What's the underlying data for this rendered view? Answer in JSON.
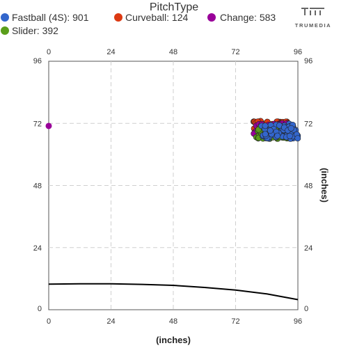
{
  "logo": {
    "text": "TRUMEDIA"
  },
  "chart_data": {
    "type": "scatter",
    "title": "PitchType",
    "xlabel": "(inches)",
    "ylabel": "(inches)",
    "xlim": [
      0,
      96
    ],
    "ylim": [
      0,
      96
    ],
    "xticks": [
      0,
      24,
      48,
      72,
      96
    ],
    "yticks": [
      0,
      24,
      48,
      72,
      96
    ],
    "grid": true,
    "legend_position": "top",
    "series": [
      {
        "name": "Fastball (4S)",
        "count": 901,
        "legend": "Fastball (4S): 901",
        "color": "#3366cc"
      },
      {
        "name": "Curveball",
        "count": 124,
        "legend": "Curveball: 124",
        "color": "#dc3912"
      },
      {
        "name": "Change",
        "count": 583,
        "legend": "Change: 583",
        "color": "#990099"
      },
      {
        "name": "Slider",
        "count": 392,
        "legend": "Slider: 392",
        "color": "#5a9e1a"
      }
    ],
    "clusters": [
      {
        "series": "Curveball",
        "x_range": [
          79,
          93
        ],
        "y_range": [
          69,
          73
        ]
      },
      {
        "series": "Change",
        "x_range": [
          79,
          92
        ],
        "y_range": [
          68,
          72
        ]
      },
      {
        "series": "Slider",
        "x_range": [
          80,
          93
        ],
        "y_range": [
          66,
          71
        ]
      },
      {
        "series": "Fastball (4S)",
        "x_range": [
          82,
          96
        ],
        "y_range": [
          66,
          72
        ]
      }
    ],
    "outliers": [
      {
        "series": "Change",
        "x": 0,
        "y": 71
      }
    ],
    "curve": {
      "color": "#000000",
      "x": [
        0,
        12,
        24,
        36,
        48,
        60,
        72,
        84,
        96
      ],
      "y": [
        9.9,
        10,
        10,
        9.8,
        9.4,
        8.6,
        7.6,
        6.1,
        3.9
      ]
    }
  }
}
